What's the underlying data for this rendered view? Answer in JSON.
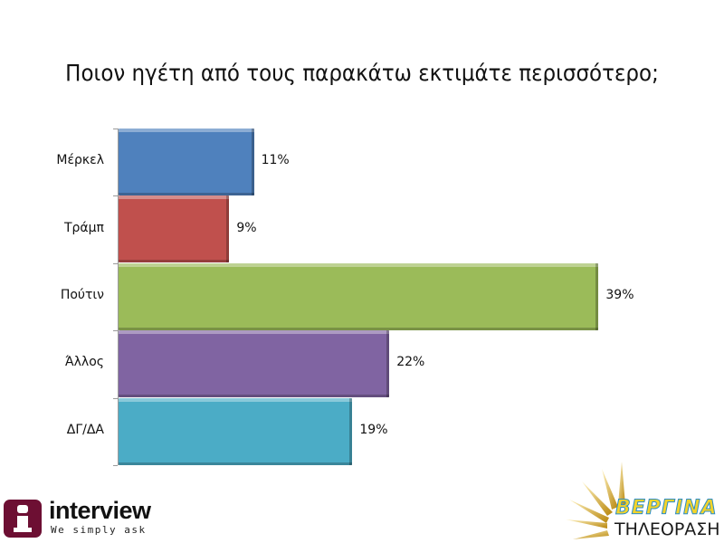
{
  "title": "Ποιον ηγέτη από τους παρακάτω εκτιμάτε περισσότερο;",
  "chart_data": {
    "type": "bar",
    "orientation": "horizontal",
    "title": "Ποιον ηγέτη από τους παρακάτω εκτιμάτε περισσότερο;",
    "categories": [
      "Μέρκελ",
      "Τράμπ",
      "Πούτιν",
      "Άλλος",
      "ΔΓ/ΔΑ"
    ],
    "values": [
      11,
      9,
      39,
      22,
      19
    ],
    "value_labels": [
      "11%",
      "9%",
      "39%",
      "22%",
      "19%"
    ],
    "colors": [
      "#4f81bd",
      "#c0504d",
      "#9bbb59",
      "#8064a2",
      "#4bacc6"
    ],
    "xlabel": "",
    "ylabel": "",
    "unit": "%",
    "grid": false,
    "legend": false
  },
  "logos": {
    "interview": {
      "name": "interview",
      "tagline": "We simply ask",
      "color": "#6d0f33"
    },
    "vergina": {
      "name": "ΒΕΡΓΙΝΑ",
      "subtitle": "ΤΗΛΕΟΡΑΣΗ"
    }
  }
}
